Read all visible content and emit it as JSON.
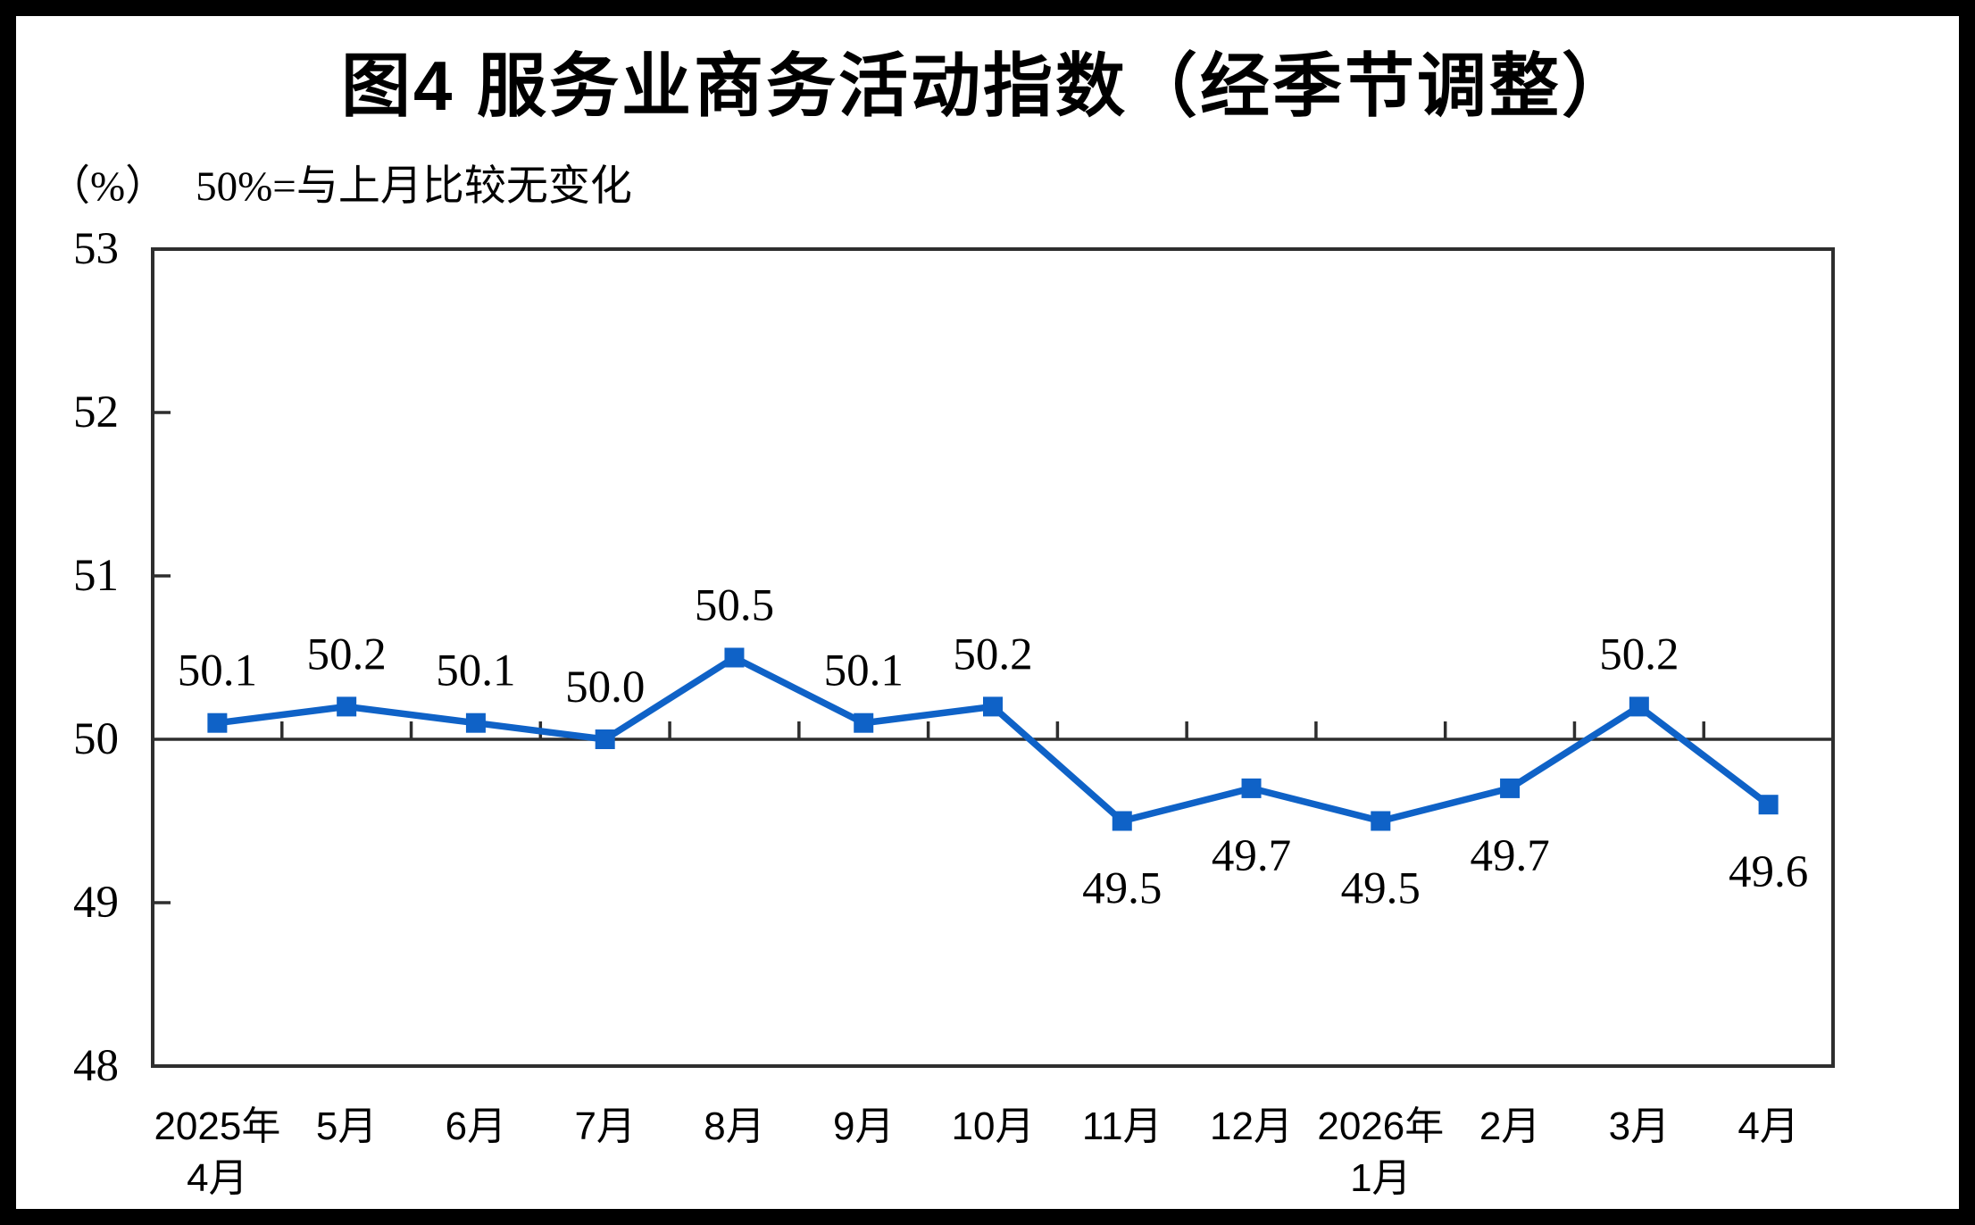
{
  "figure": {
    "title": "图4 服务业商务活动指数（经季节调整）",
    "unit_label": "（%）",
    "note": "50%=与上月比较无变化"
  },
  "chart_data": {
    "type": "line",
    "title": "图4 服务业商务活动指数（经季节调整）",
    "categories": [
      "2025年\n4月",
      "5月",
      "6月",
      "7月",
      "8月",
      "9月",
      "10月",
      "11月",
      "12月",
      "2026年\n1月",
      "2月",
      "3月",
      "4月"
    ],
    "series": [
      {
        "name": "服务业商务活动指数",
        "values": [
          50.1,
          50.2,
          50.1,
          50.0,
          50.5,
          50.1,
          50.2,
          49.5,
          49.7,
          49.5,
          49.7,
          50.2,
          49.6
        ]
      }
    ],
    "xlabel": "",
    "ylabel": "（%）",
    "ylim": [
      48,
      53
    ],
    "yticks": [
      48,
      49,
      50,
      51,
      52,
      53
    ],
    "reference_line": 50,
    "reference_note": "50%=与上月比较无变化",
    "grid": false,
    "legend": false,
    "data_labels": true,
    "marker": "square",
    "line_color": "#0F62C7",
    "axis_color": "#2E2E2E",
    "label_color": "#000000",
    "background_color": "#FFFFFF"
  }
}
